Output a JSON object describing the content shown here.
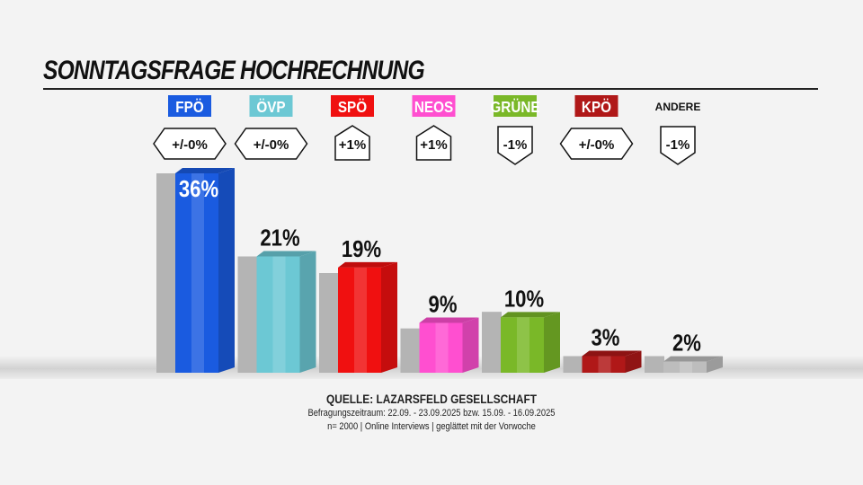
{
  "title": "SONNTAGSFRAGE HOCHRECHNUNG",
  "footer": {
    "source": "QUELLE: LAZARSFELD GESELLSCHAFT",
    "period": "Befragungszeitraum: 22.09. - 23.09.2025 bzw. 15.09. - 16.09.2025",
    "note": "n= 2000 | Online Interviews | geglättet mit der Vorwoche"
  },
  "chart_data": {
    "type": "bar",
    "title": "SONNTAGSFRAGE HOCHRECHNUNG",
    "categories": [
      "FPÖ",
      "ÖVP",
      "SPÖ",
      "NEOS",
      "GRÜNE",
      "KPÖ",
      "ANDERE"
    ],
    "colors": [
      "#1a5be0",
      "#6cc8d4",
      "#f01010",
      "#ff4fd0",
      "#7ab828",
      "#b01818",
      null
    ],
    "series": [
      {
        "values": [
          36,
          21,
          19,
          9,
          10,
          3,
          2
        ],
        "labels": [
          "36%",
          "21%",
          "19%",
          "9%",
          "10%",
          "3%",
          "2%"
        ]
      },
      {
        "values": [
          36,
          21,
          18,
          8,
          11,
          3,
          3
        ]
      }
    ],
    "changes": [
      "+/-0%",
      "+/-0%",
      "+1%",
      "+1%",
      "-1%",
      "+/-0%",
      "-1%"
    ],
    "ylim": [
      0,
      36
    ],
    "grid": false
  }
}
